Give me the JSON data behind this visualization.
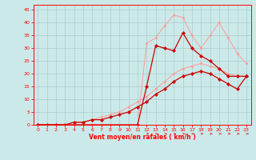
{
  "background_color": "#cce9e9",
  "grid_color": "#aacccc",
  "xlabel": "Vent moyen/en rafales ( km/h )",
  "xlim": [
    -0.5,
    23.5
  ],
  "ylim": [
    0,
    47
  ],
  "xticks": [
    0,
    1,
    2,
    3,
    4,
    5,
    6,
    7,
    8,
    9,
    10,
    11,
    12,
    13,
    14,
    15,
    16,
    17,
    18,
    19,
    20,
    21,
    22,
    23
  ],
  "yticks": [
    0,
    5,
    10,
    15,
    20,
    25,
    30,
    35,
    40,
    45
  ],
  "series": [
    {
      "color": "#ff9999",
      "linewidth": 0.7,
      "marker": "o",
      "markersize": 1.8,
      "x": [
        0,
        3,
        4,
        5,
        6,
        7,
        8,
        9,
        10,
        11,
        12,
        13,
        14,
        15,
        16,
        17,
        18,
        19,
        20,
        21,
        22,
        23
      ],
      "y": [
        0,
        0,
        0,
        0,
        0,
        0,
        0,
        0,
        0,
        0,
        32,
        34,
        39,
        43,
        42,
        35,
        30,
        35,
        40,
        34,
        28,
        24
      ]
    },
    {
      "color": "#ff9999",
      "linewidth": 0.7,
      "marker": "o",
      "markersize": 1.8,
      "x": [
        0,
        1,
        2,
        3,
        4,
        5,
        6,
        7,
        8,
        9,
        10,
        11,
        12,
        13,
        14,
        15,
        16,
        17,
        18,
        19,
        20,
        21,
        22,
        23
      ],
      "y": [
        0,
        0,
        0,
        0,
        1,
        1,
        2,
        3,
        4,
        5,
        7,
        9,
        11,
        14,
        17,
        20,
        22,
        23,
        24,
        23,
        22,
        20,
        19,
        19
      ]
    },
    {
      "color": "#cc0000",
      "linewidth": 0.9,
      "marker": "D",
      "markersize": 2.2,
      "x": [
        0,
        11,
        12,
        13,
        14,
        15,
        16,
        17,
        18,
        19,
        20,
        21,
        22,
        23
      ],
      "y": [
        0,
        0,
        15,
        31,
        30,
        29,
        36,
        30,
        27,
        25,
        22,
        19,
        19,
        19
      ]
    },
    {
      "color": "#cc0000",
      "linewidth": 0.9,
      "marker": "D",
      "markersize": 2.2,
      "x": [
        0,
        1,
        2,
        3,
        4,
        5,
        6,
        7,
        8,
        9,
        10,
        11,
        12,
        13,
        14,
        15,
        16,
        17,
        18,
        19,
        20,
        21,
        22,
        23
      ],
      "y": [
        0,
        0,
        0,
        0,
        1,
        1,
        2,
        2,
        3,
        4,
        5,
        7,
        9,
        12,
        14,
        17,
        19,
        20,
        21,
        20,
        18,
        16,
        14,
        19
      ]
    }
  ]
}
